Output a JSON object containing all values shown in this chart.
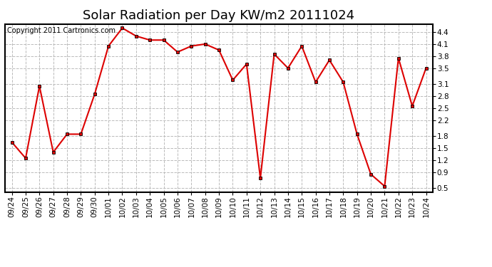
{
  "title": "Solar Radiation per Day KW/m2 20111024",
  "copyright_text": "Copyright 2011 Cartronics.com",
  "dates": [
    "09/24",
    "09/25",
    "09/26",
    "09/27",
    "09/28",
    "09/29",
    "09/30",
    "10/01",
    "10/02",
    "10/03",
    "10/04",
    "10/05",
    "10/06",
    "10/07",
    "10/08",
    "10/09",
    "10/10",
    "10/11",
    "10/12",
    "10/13",
    "10/14",
    "10/15",
    "10/16",
    "10/17",
    "10/18",
    "10/19",
    "10/20",
    "10/21",
    "10/22",
    "10/23",
    "10/24"
  ],
  "values": [
    1.65,
    1.25,
    3.05,
    1.4,
    1.85,
    1.85,
    2.85,
    4.05,
    4.5,
    4.3,
    4.2,
    4.2,
    3.9,
    4.05,
    4.1,
    3.95,
    3.2,
    3.6,
    0.75,
    3.85,
    3.5,
    4.05,
    3.15,
    3.7,
    3.15,
    1.85,
    0.85,
    0.55,
    3.75,
    2.55,
    3.5
  ],
  "line_color": "#dd0000",
  "marker": "s",
  "marker_size": 2.5,
  "line_width": 1.5,
  "fig_bg_color": "#ffffff",
  "plot_bg_color": "#ffffff",
  "grid_color": "#bbbbbb",
  "outer_border_color": "#000000",
  "ylim": [
    0.4,
    4.6
  ],
  "yticks": [
    0.5,
    0.9,
    1.2,
    1.5,
    1.8,
    2.2,
    2.5,
    2.8,
    3.1,
    3.5,
    3.8,
    4.1,
    4.4
  ],
  "title_fontsize": 13,
  "copyright_fontsize": 7,
  "tick_fontsize": 7.5
}
